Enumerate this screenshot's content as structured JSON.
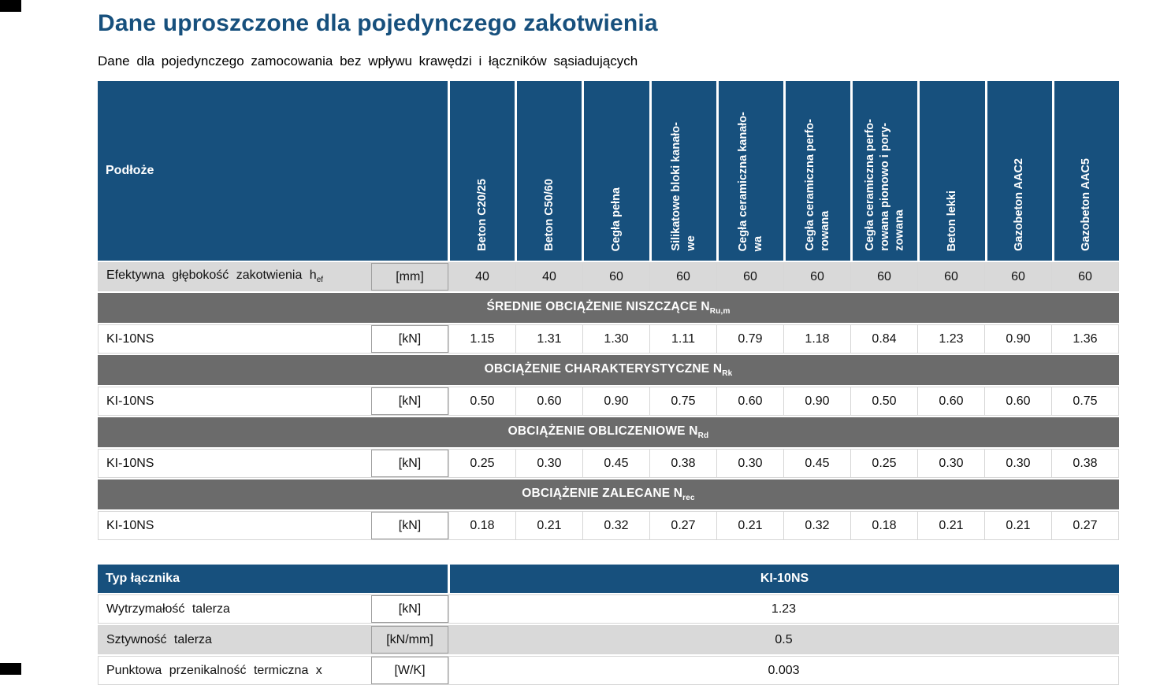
{
  "page": {
    "title": "Dane uproszczone dla pojedynczego zakotwienia",
    "subtitle": "Dane dla pojedynczego zamocowania bez wpływu krawędzi i łączników sąsiadujących"
  },
  "colors": {
    "header_blue": "#17507D",
    "section_gray": "#6B6B6B",
    "row_gray": "#D9D9D9"
  },
  "table1": {
    "corner_label": "Podłoże",
    "columns": [
      "Beton C20/25",
      "Beton C50/60",
      "Cegła pełna",
      "Silikatowe bloki kanało-\nwe",
      "Cegła ceramiczna kanało-\nwa",
      "Cegła ceramiczna perfo-\nrowana",
      "Cegła ceramiczna perfo-\nrowana pionowo i pory-\nzowana",
      "Beton lekki",
      "Gazobeton AAC2",
      "Gazobeton AAC5"
    ],
    "depth_row": {
      "label": "Efektywna głębokość zakotwienia h",
      "label_sub": "ef",
      "unit": "[mm]",
      "values": [
        "40",
        "40",
        "60",
        "60",
        "60",
        "60",
        "60",
        "60",
        "60",
        "60"
      ]
    },
    "sections": [
      {
        "header": "ŚREDNIE OBCIĄŻENIE NISZCZĄCE N",
        "header_sub": "Ru,m",
        "row_label": "KI-10NS",
        "unit": "[kN]",
        "values": [
          "1.15",
          "1.31",
          "1.30",
          "1.11",
          "0.79",
          "1.18",
          "0.84",
          "1.23",
          "0.90",
          "1.36"
        ]
      },
      {
        "header": "OBCIĄŻENIE CHARAKTERYSTYCZNE N",
        "header_sub": "Rk",
        "row_label": "KI-10NS",
        "unit": "[kN]",
        "values": [
          "0.50",
          "0.60",
          "0.90",
          "0.75",
          "0.60",
          "0.90",
          "0.50",
          "0.60",
          "0.60",
          "0.75"
        ]
      },
      {
        "header": "OBCIĄŻENIE OBLICZENIOWE N",
        "header_sub": "Rd",
        "row_label": "KI-10NS",
        "unit": "[kN]",
        "values": [
          "0.25",
          "0.30",
          "0.45",
          "0.38",
          "0.30",
          "0.45",
          "0.25",
          "0.30",
          "0.30",
          "0.38"
        ]
      },
      {
        "header": "OBCIĄŻENIE ZALECANE N",
        "header_sub": "rec",
        "row_label": "KI-10NS",
        "unit": "[kN]",
        "values": [
          "0.18",
          "0.21",
          "0.32",
          "0.27",
          "0.21",
          "0.32",
          "0.18",
          "0.21",
          "0.21",
          "0.27"
        ]
      }
    ]
  },
  "table2": {
    "header_label": "Typ łącznika",
    "header_value": "KI-10NS",
    "rows": [
      {
        "label": "Wytrzymałość talerza",
        "unit": "[kN]",
        "value": "1.23"
      },
      {
        "label": "Sztywność talerza",
        "unit": "[kN/mm]",
        "value": "0.5"
      },
      {
        "label": "Punktowa przenikalność termiczna x",
        "unit": "[W/K]",
        "value": "0.003"
      }
    ]
  }
}
